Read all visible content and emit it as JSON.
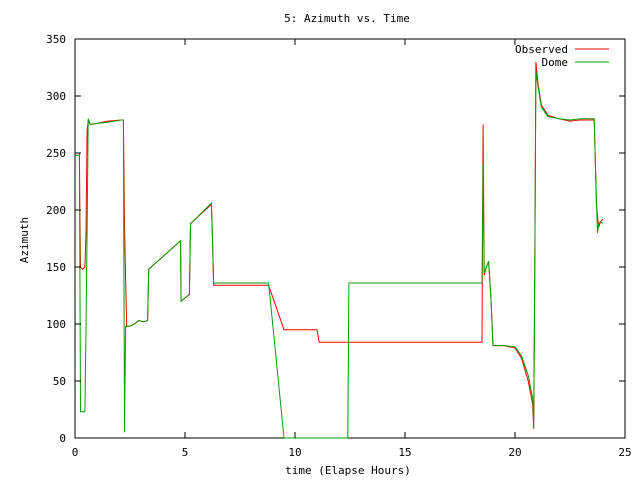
{
  "chart_data": {
    "type": "line",
    "title": "5: Azimuth vs. Time",
    "xlabel": "time (Elapse Hours)",
    "ylabel": "Azimuth",
    "xlim": [
      0,
      25
    ],
    "ylim": [
      0,
      350
    ],
    "xticks": [
      0,
      5,
      10,
      15,
      20,
      25
    ],
    "yticks": [
      0,
      50,
      100,
      150,
      200,
      250,
      300,
      350
    ],
    "xtick_labels": [
      "0",
      "5",
      "10",
      "15",
      "20",
      "25"
    ],
    "ytick_labels": [
      "0",
      "50",
      "100",
      "150",
      "200",
      "250",
      "300",
      "350"
    ],
    "grid": false,
    "legend_position": "top-right",
    "series": [
      {
        "name": "Observed",
        "color": "#ff0000",
        "points": [
          [
            0.0,
            250
          ],
          [
            0.2,
            250
          ],
          [
            0.22,
            200
          ],
          [
            0.25,
            150
          ],
          [
            0.35,
            148
          ],
          [
            0.45,
            150
          ],
          [
            0.5,
            180
          ],
          [
            0.55,
            270
          ],
          [
            0.6,
            278
          ],
          [
            0.7,
            275
          ],
          [
            1.0,
            276
          ],
          [
            1.5,
            278
          ],
          [
            2.1,
            279
          ],
          [
            2.2,
            279
          ],
          [
            2.25,
            188
          ],
          [
            2.3,
            140
          ],
          [
            2.35,
            98
          ],
          [
            2.5,
            98
          ],
          [
            2.7,
            100
          ],
          [
            2.9,
            103
          ],
          [
            3.1,
            102
          ],
          [
            3.3,
            103
          ],
          [
            3.35,
            148
          ],
          [
            4.8,
            173
          ],
          [
            4.82,
            120
          ],
          [
            5.2,
            126
          ],
          [
            5.25,
            188
          ],
          [
            6.2,
            205
          ],
          [
            6.25,
            175
          ],
          [
            6.3,
            134
          ],
          [
            8.8,
            134
          ],
          [
            9.5,
            95
          ],
          [
            11.0,
            95
          ],
          [
            11.1,
            84
          ],
          [
            18.5,
            84
          ],
          [
            18.55,
            275
          ],
          [
            18.6,
            143
          ],
          [
            18.7,
            150
          ],
          [
            18.8,
            155
          ],
          [
            18.9,
            125
          ],
          [
            19.0,
            81
          ],
          [
            19.5,
            81
          ],
          [
            20.0,
            79
          ],
          [
            20.3,
            70
          ],
          [
            20.6,
            50
          ],
          [
            20.8,
            30
          ],
          [
            20.85,
            8
          ],
          [
            20.9,
            150
          ],
          [
            20.95,
            330
          ],
          [
            21.05,
            310
          ],
          [
            21.2,
            292
          ],
          [
            21.5,
            283
          ],
          [
            22.0,
            280
          ],
          [
            22.5,
            278
          ],
          [
            23.0,
            279
          ],
          [
            23.6,
            279
          ],
          [
            23.7,
            205
          ],
          [
            23.8,
            185
          ],
          [
            23.9,
            190
          ],
          [
            24.0,
            192
          ]
        ]
      },
      {
        "name": "Dome",
        "color": "#00a000",
        "points": [
          [
            0.0,
            248
          ],
          [
            0.2,
            248
          ],
          [
            0.25,
            23
          ],
          [
            0.45,
            23
          ],
          [
            0.5,
            95
          ],
          [
            0.55,
            180
          ],
          [
            0.6,
            280
          ],
          [
            0.7,
            275
          ],
          [
            1.0,
            276
          ],
          [
            1.5,
            277
          ],
          [
            2.1,
            279
          ],
          [
            2.2,
            279
          ],
          [
            2.25,
            5
          ],
          [
            2.3,
            98
          ],
          [
            2.5,
            98
          ],
          [
            2.7,
            100
          ],
          [
            2.9,
            103
          ],
          [
            3.1,
            102
          ],
          [
            3.3,
            103
          ],
          [
            3.35,
            148
          ],
          [
            4.8,
            173
          ],
          [
            4.82,
            120
          ],
          [
            5.2,
            126
          ],
          [
            5.25,
            188
          ],
          [
            6.2,
            206
          ],
          [
            6.25,
            175
          ],
          [
            6.3,
            136
          ],
          [
            8.8,
            136
          ],
          [
            9.5,
            0
          ],
          [
            12.4,
            0
          ],
          [
            12.45,
            136
          ],
          [
            18.5,
            136
          ],
          [
            18.55,
            240
          ],
          [
            18.6,
            145
          ],
          [
            18.7,
            150
          ],
          [
            18.8,
            155
          ],
          [
            18.9,
            125
          ],
          [
            19.0,
            81
          ],
          [
            19.5,
            81
          ],
          [
            20.0,
            80
          ],
          [
            20.3,
            72
          ],
          [
            20.6,
            55
          ],
          [
            20.8,
            35
          ],
          [
            20.85,
            15
          ],
          [
            20.9,
            150
          ],
          [
            20.95,
            322
          ],
          [
            21.05,
            308
          ],
          [
            21.2,
            290
          ],
          [
            21.5,
            282
          ],
          [
            22.0,
            280
          ],
          [
            22.5,
            279
          ],
          [
            23.0,
            280
          ],
          [
            23.6,
            280
          ],
          [
            23.7,
            210
          ],
          [
            23.75,
            180
          ],
          [
            23.8,
            188
          ],
          [
            23.9,
            190
          ],
          [
            24.0,
            188
          ]
        ]
      }
    ]
  }
}
